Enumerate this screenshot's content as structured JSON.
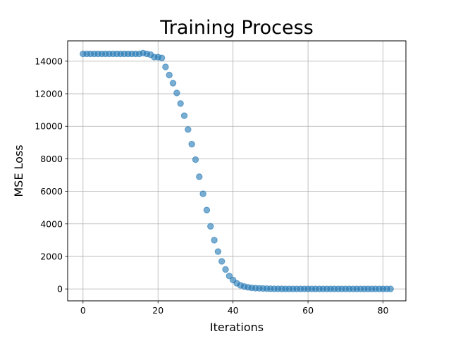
{
  "chart_data": {
    "type": "scatter",
    "title": "Training Process",
    "xlabel": "Iterations",
    "ylabel": "MSE Loss",
    "xlim": [
      -4.1,
      86.1
    ],
    "ylim": [
      -730,
      15250
    ],
    "x_ticks": [
      0,
      20,
      40,
      60,
      80
    ],
    "x_tick_labels": [
      "0",
      "20",
      "40",
      "60",
      "80"
    ],
    "y_ticks": [
      0,
      2000,
      4000,
      6000,
      8000,
      10000,
      12000,
      14000
    ],
    "y_tick_labels": [
      "0",
      "2000",
      "4000",
      "6000",
      "8000",
      "10000",
      "12000",
      "14000"
    ],
    "grid": true,
    "marker_color": "#1f77b4",
    "marker_alpha": 0.6,
    "x": [
      0,
      1,
      2,
      3,
      4,
      5,
      6,
      7,
      8,
      9,
      10,
      11,
      12,
      13,
      14,
      15,
      16,
      17,
      18,
      19,
      20,
      21,
      22,
      23,
      24,
      25,
      26,
      27,
      28,
      29,
      30,
      31,
      32,
      33,
      34,
      35,
      36,
      37,
      38,
      39,
      40,
      41,
      42,
      43,
      44,
      45,
      46,
      47,
      48,
      49,
      50,
      51,
      52,
      53,
      54,
      55,
      56,
      57,
      58,
      59,
      60,
      61,
      62,
      63,
      64,
      65,
      66,
      67,
      68,
      69,
      70,
      71,
      72,
      73,
      74,
      75,
      76,
      77,
      78,
      79,
      80,
      81,
      82
    ],
    "y": [
      14450,
      14450,
      14450,
      14450,
      14450,
      14450,
      14450,
      14450,
      14450,
      14450,
      14450,
      14450,
      14450,
      14450,
      14450,
      14450,
      14500,
      14450,
      14400,
      14250,
      14250,
      14200,
      13650,
      13150,
      12650,
      12050,
      11400,
      10650,
      9800,
      8900,
      7950,
      6900,
      5850,
      4850,
      3850,
      3000,
      2300,
      1700,
      1200,
      800,
      550,
      350,
      220,
      150,
      100,
      70,
      50,
      40,
      30,
      20,
      15,
      10,
      8,
      6,
      5,
      5,
      4,
      4,
      3,
      3,
      3,
      3,
      2,
      2,
      2,
      2,
      2,
      2,
      2,
      2,
      2,
      2,
      2,
      2,
      2,
      2,
      2,
      2,
      2,
      2,
      2,
      2,
      2
    ]
  }
}
